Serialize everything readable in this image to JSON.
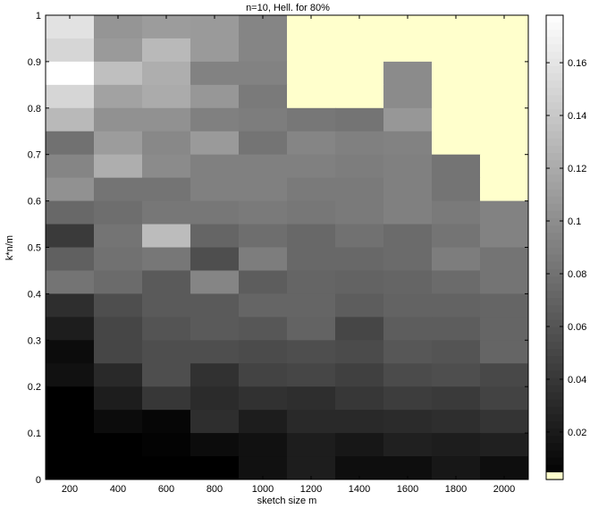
{
  "chart_data": {
    "type": "heatmap",
    "title": "n=10, Hell. for 80%",
    "xlabel": "sketch size m",
    "ylabel": "k*n/m",
    "x_categories": [
      "200",
      "400",
      "600",
      "800",
      "1000",
      "1200",
      "1400",
      "1600",
      "1800",
      "2000"
    ],
    "xticks": [
      "200",
      "400",
      "600",
      "800",
      "1000",
      "1200",
      "1400",
      "1600",
      "1800",
      "2000"
    ],
    "yticks": [
      "0",
      "0.1",
      "0.2",
      "0.3",
      "0.4",
      "0.5",
      "0.6",
      "0.7",
      "0.8",
      "0.9",
      "1"
    ],
    "ylim": [
      0,
      1
    ],
    "y_bin_height": 0.05,
    "colorbar": {
      "ticks": [
        "0.02",
        "0.04",
        "0.06",
        "0.08",
        "0.1",
        "0.12",
        "0.14",
        "0.16"
      ],
      "range": [
        0.002,
        0.178
      ],
      "colormap": "gray",
      "missing_color": "#ffffcc"
    },
    "missing_value_color": "#ffffcc",
    "rows_top_to_bottom": [
      [
        0.158,
        0.105,
        0.11,
        0.108,
        0.094,
        null,
        null,
        null,
        null,
        null
      ],
      [
        0.15,
        0.108,
        0.13,
        0.108,
        0.094,
        null,
        null,
        null,
        null,
        null
      ],
      [
        0.178,
        0.134,
        0.122,
        0.092,
        0.092,
        null,
        null,
        0.098,
        null,
        null
      ],
      [
        0.15,
        0.114,
        0.12,
        0.106,
        0.086,
        null,
        null,
        0.098,
        null,
        null
      ],
      [
        0.13,
        0.102,
        0.102,
        0.09,
        0.088,
        0.084,
        0.082,
        0.106,
        null,
        null
      ],
      [
        0.08,
        0.11,
        0.096,
        0.108,
        0.082,
        0.094,
        0.09,
        0.092,
        null,
        null
      ],
      [
        0.094,
        0.122,
        0.098,
        0.09,
        0.09,
        0.09,
        0.088,
        0.09,
        0.082,
        null
      ],
      [
        0.102,
        0.082,
        0.082,
        0.09,
        0.09,
        0.086,
        0.086,
        0.09,
        0.082,
        null
      ],
      [
        0.074,
        0.078,
        0.084,
        0.084,
        0.086,
        0.084,
        0.086,
        0.09,
        0.086,
        0.092
      ],
      [
        0.042,
        0.082,
        0.132,
        0.072,
        0.078,
        0.074,
        0.08,
        0.076,
        0.082,
        0.092
      ],
      [
        0.068,
        0.08,
        0.084,
        0.056,
        0.088,
        0.074,
        0.074,
        0.076,
        0.088,
        0.082
      ],
      [
        0.082,
        0.076,
        0.064,
        0.094,
        0.066,
        0.072,
        0.07,
        0.072,
        0.076,
        0.082
      ],
      [
        0.034,
        0.056,
        0.064,
        0.064,
        0.072,
        0.072,
        0.066,
        0.07,
        0.07,
        0.072
      ],
      [
        0.022,
        0.05,
        0.06,
        0.064,
        0.062,
        0.07,
        0.05,
        0.066,
        0.066,
        0.072
      ],
      [
        0.01,
        0.05,
        0.056,
        0.056,
        0.054,
        0.056,
        0.054,
        0.062,
        0.06,
        0.072
      ],
      [
        0.014,
        0.03,
        0.056,
        0.036,
        0.048,
        0.05,
        0.046,
        0.054,
        0.056,
        0.052
      ],
      [
        0.002,
        0.022,
        0.04,
        0.032,
        0.036,
        0.034,
        0.04,
        0.044,
        0.042,
        0.048
      ],
      [
        0.002,
        0.01,
        0.006,
        0.034,
        0.022,
        0.03,
        0.03,
        0.032,
        0.034,
        0.038
      ],
      [
        0.002,
        0.002,
        0.004,
        0.01,
        0.014,
        0.022,
        0.018,
        0.024,
        0.022,
        0.024
      ],
      [
        0.002,
        0.002,
        0.002,
        0.002,
        0.014,
        0.022,
        0.012,
        0.012,
        0.018,
        0.012
      ]
    ]
  }
}
